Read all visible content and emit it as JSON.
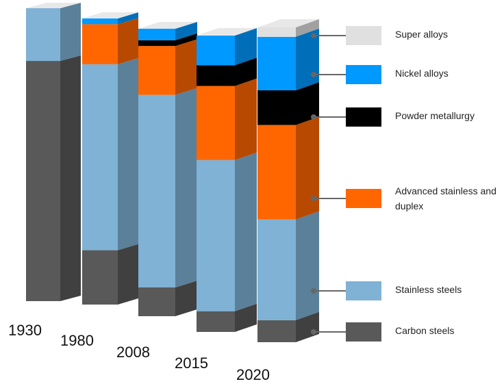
{
  "chart_data": {
    "type": "bar3d-stacked",
    "categories": [
      "1930",
      "1980",
      "2008",
      "2015",
      "2020"
    ],
    "series": [
      {
        "name": "Super alloys",
        "color": "#e0e0e0",
        "values": [
          0,
          0,
          0,
          0,
          3
        ]
      },
      {
        "name": "Nickel alloys",
        "color": "#0099ff",
        "values": [
          0,
          2,
          4,
          10,
          17
        ]
      },
      {
        "name": "Powder metallurgy",
        "color": "#000000",
        "values": [
          0,
          0,
          2,
          7,
          11
        ]
      },
      {
        "name": "Advanced stainless and duplex",
        "color": "#ff6600",
        "values": [
          0,
          14,
          17,
          25,
          30
        ]
      },
      {
        "name": "Stainless steels",
        "color": "#7fb2d5",
        "values": [
          18,
          65,
          67,
          51,
          32
        ]
      },
      {
        "name": "Carbon steels",
        "color": "#595959",
        "values": [
          82,
          19,
          10,
          7,
          7
        ]
      }
    ]
  }
}
